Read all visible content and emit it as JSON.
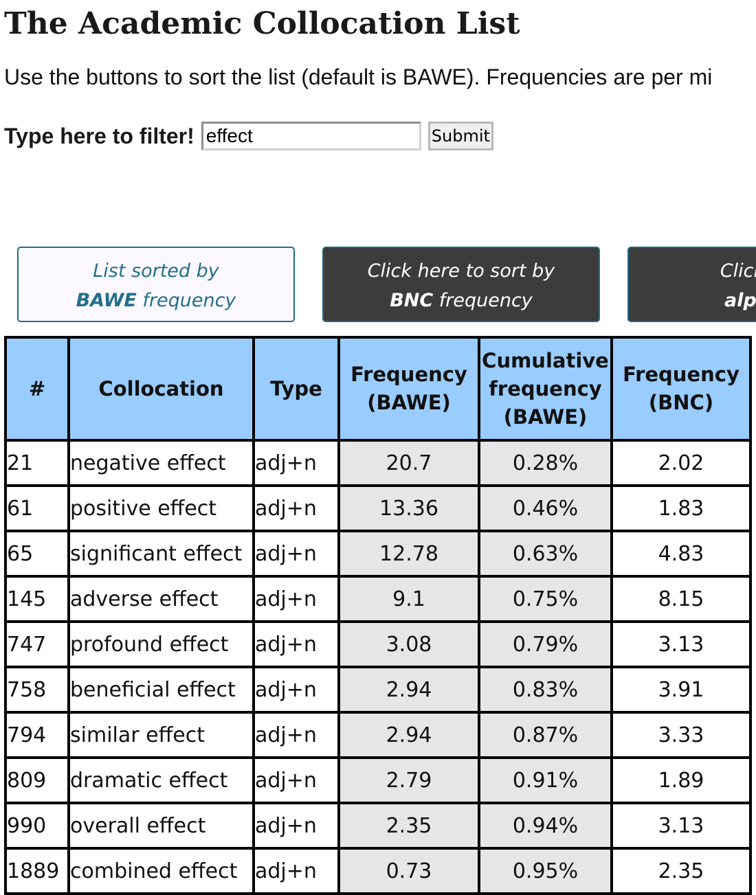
{
  "page": {
    "title": "The Academic Collocation List",
    "intro": "Use the buttons to sort the list (default is BAWE). Frequencies are per mi"
  },
  "filter": {
    "label_bold": "Type here to filter",
    "label_end": "!",
    "value": "effect",
    "submit_label": "Submit"
  },
  "sort_buttons": {
    "current": {
      "line1": "List sorted by",
      "strong": "BAWE",
      "rest": " frequency"
    },
    "bnc": {
      "line1": "Click here to sort by",
      "strong": "BNC",
      "rest": " frequency"
    },
    "alpha": {
      "line1": "Click here",
      "strong": "alphabe",
      "rest": ""
    }
  },
  "colors": {
    "header_bg": "#99ccff",
    "bawe_column_bg": "#e6e6e6",
    "active_button_text": "#236f8c",
    "dark_button_bg": "#3c3c3c"
  },
  "table": {
    "headers": {
      "num": "#",
      "collocation": "Collocation",
      "type": "Type",
      "freq_bawe_1": "Frequency",
      "freq_bawe_2": "(BAWE)",
      "cum_1": "Cumulative",
      "cum_2": "frequency",
      "cum_3": "(BAWE)",
      "freq_bnc_1": "Frequency",
      "freq_bnc_2": "(BNC)"
    },
    "rows": [
      {
        "num": "21",
        "collocation": "negative effect",
        "type": "adj+n",
        "bawe": "20.7",
        "cum": "0.28%",
        "bnc": "2.02"
      },
      {
        "num": "61",
        "collocation": "positive effect",
        "type": "adj+n",
        "bawe": "13.36",
        "cum": "0.46%",
        "bnc": "1.83"
      },
      {
        "num": "65",
        "collocation": "significant effect",
        "type": "adj+n",
        "bawe": "12.78",
        "cum": "0.63%",
        "bnc": "4.83"
      },
      {
        "num": "145",
        "collocation": "adverse effect",
        "type": "adj+n",
        "bawe": "9.1",
        "cum": "0.75%",
        "bnc": "8.15"
      },
      {
        "num": "747",
        "collocation": "profound effect",
        "type": "adj+n",
        "bawe": "3.08",
        "cum": "0.79%",
        "bnc": "3.13"
      },
      {
        "num": "758",
        "collocation": "beneficial effect",
        "type": "adj+n",
        "bawe": "2.94",
        "cum": "0.83%",
        "bnc": "3.91"
      },
      {
        "num": "794",
        "collocation": "similar effect",
        "type": "adj+n",
        "bawe": "2.94",
        "cum": "0.87%",
        "bnc": "3.33"
      },
      {
        "num": "809",
        "collocation": "dramatic effect",
        "type": "adj+n",
        "bawe": "2.79",
        "cum": "0.91%",
        "bnc": "1.89"
      },
      {
        "num": "990",
        "collocation": "overall effect",
        "type": "adj+n",
        "bawe": "2.35",
        "cum": "0.94%",
        "bnc": "3.13"
      },
      {
        "num": "1889",
        "collocation": "combined effect",
        "type": "adj+n",
        "bawe": "0.73",
        "cum": "0.95%",
        "bnc": "2.35"
      }
    ]
  }
}
